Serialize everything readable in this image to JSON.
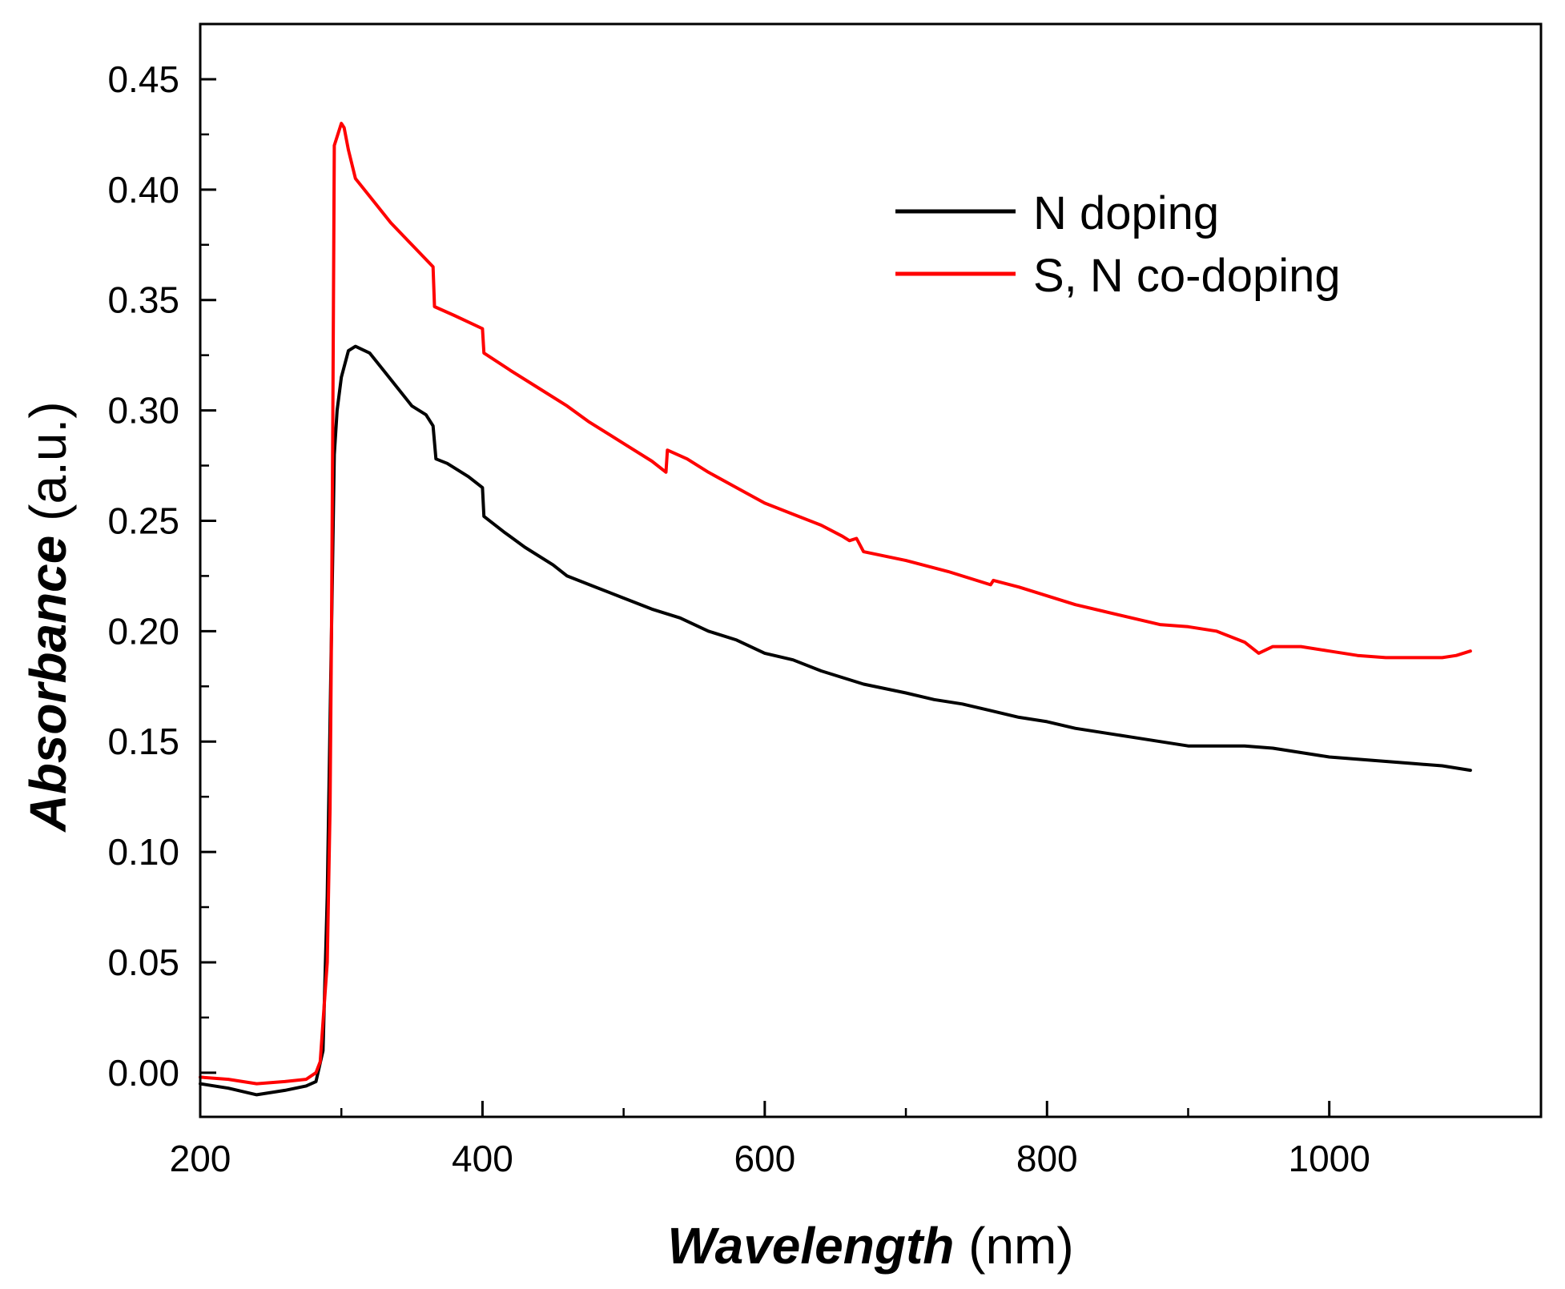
{
  "chart_data": {
    "type": "line",
    "title": "",
    "xlabel": {
      "main": "Wavelength",
      "unit": " (nm)"
    },
    "ylabel": {
      "main": "Absorbance",
      "unit": " (a.u.)"
    },
    "xlim": [
      200,
      1150
    ],
    "ylim": [
      -0.02,
      0.475
    ],
    "xticks": [
      200,
      400,
      600,
      800,
      1000
    ],
    "xtick_labels": [
      "200",
      "400",
      "600",
      "800",
      "1000"
    ],
    "yticks": [
      0.0,
      0.05,
      0.1,
      0.15,
      0.2,
      0.25,
      0.3,
      0.35,
      0.4,
      0.45
    ],
    "ytick_labels": [
      "0.00",
      "0.05",
      "0.10",
      "0.15",
      "0.20",
      "0.25",
      "0.30",
      "0.35",
      "0.40",
      "0.45"
    ],
    "grid": false,
    "legend_position": "top-right",
    "series": [
      {
        "name": "N doping",
        "color": "#000000",
        "points": [
          [
            200,
            -0.005
          ],
          [
            220,
            -0.007
          ],
          [
            240,
            -0.01
          ],
          [
            260,
            -0.008
          ],
          [
            275,
            -0.006
          ],
          [
            282,
            -0.004
          ],
          [
            287,
            0.01
          ],
          [
            290,
            0.08
          ],
          [
            293,
            0.2
          ],
          [
            295,
            0.28
          ],
          [
            297,
            0.3
          ],
          [
            300,
            0.315
          ],
          [
            305,
            0.327
          ],
          [
            310,
            0.329
          ],
          [
            320,
            0.326
          ],
          [
            330,
            0.318
          ],
          [
            340,
            0.31
          ],
          [
            350,
            0.302
          ],
          [
            360,
            0.298
          ],
          [
            365,
            0.293
          ],
          [
            367,
            0.278
          ],
          [
            375,
            0.276
          ],
          [
            390,
            0.27
          ],
          [
            400,
            0.265
          ],
          [
            401,
            0.252
          ],
          [
            415,
            0.245
          ],
          [
            430,
            0.238
          ],
          [
            450,
            0.23
          ],
          [
            460,
            0.225
          ],
          [
            480,
            0.22
          ],
          [
            500,
            0.215
          ],
          [
            520,
            0.21
          ],
          [
            540,
            0.206
          ],
          [
            560,
            0.2
          ],
          [
            580,
            0.196
          ],
          [
            600,
            0.19
          ],
          [
            620,
            0.187
          ],
          [
            640,
            0.182
          ],
          [
            660,
            0.178
          ],
          [
            670,
            0.176
          ],
          [
            700,
            0.172
          ],
          [
            720,
            0.169
          ],
          [
            740,
            0.167
          ],
          [
            760,
            0.164
          ],
          [
            780,
            0.161
          ],
          [
            800,
            0.159
          ],
          [
            820,
            0.156
          ],
          [
            840,
            0.154
          ],
          [
            860,
            0.152
          ],
          [
            880,
            0.15
          ],
          [
            900,
            0.148
          ],
          [
            920,
            0.148
          ],
          [
            940,
            0.148
          ],
          [
            960,
            0.147
          ],
          [
            980,
            0.145
          ],
          [
            1000,
            0.143
          ],
          [
            1020,
            0.142
          ],
          [
            1040,
            0.141
          ],
          [
            1060,
            0.14
          ],
          [
            1080,
            0.139
          ],
          [
            1100,
            0.137
          ]
        ]
      },
      {
        "name": "S, N co-doping",
        "color": "#ff0000",
        "points": [
          [
            200,
            -0.002
          ],
          [
            220,
            -0.003
          ],
          [
            240,
            -0.005
          ],
          [
            260,
            -0.004
          ],
          [
            275,
            -0.003
          ],
          [
            282,
            0.0
          ],
          [
            285,
            0.005
          ],
          [
            290,
            0.05
          ],
          [
            292,
            0.12
          ],
          [
            293,
            0.2
          ],
          [
            294,
            0.3
          ],
          [
            295,
            0.42
          ],
          [
            300,
            0.43
          ],
          [
            302,
            0.428
          ],
          [
            305,
            0.418
          ],
          [
            310,
            0.405
          ],
          [
            320,
            0.397
          ],
          [
            335,
            0.385
          ],
          [
            350,
            0.375
          ],
          [
            365,
            0.365
          ],
          [
            366,
            0.347
          ],
          [
            380,
            0.343
          ],
          [
            400,
            0.337
          ],
          [
            401,
            0.326
          ],
          [
            420,
            0.318
          ],
          [
            440,
            0.31
          ],
          [
            460,
            0.302
          ],
          [
            475,
            0.295
          ],
          [
            500,
            0.285
          ],
          [
            520,
            0.277
          ],
          [
            530,
            0.272
          ],
          [
            531,
            0.282
          ],
          [
            545,
            0.278
          ],
          [
            560,
            0.272
          ],
          [
            580,
            0.265
          ],
          [
            600,
            0.258
          ],
          [
            620,
            0.253
          ],
          [
            640,
            0.248
          ],
          [
            655,
            0.243
          ],
          [
            660,
            0.241
          ],
          [
            665,
            0.242
          ],
          [
            670,
            0.236
          ],
          [
            700,
            0.232
          ],
          [
            730,
            0.227
          ],
          [
            760,
            0.221
          ],
          [
            762,
            0.223
          ],
          [
            780,
            0.22
          ],
          [
            800,
            0.216
          ],
          [
            820,
            0.212
          ],
          [
            840,
            0.209
          ],
          [
            860,
            0.206
          ],
          [
            880,
            0.203
          ],
          [
            900,
            0.202
          ],
          [
            920,
            0.2
          ],
          [
            940,
            0.195
          ],
          [
            950,
            0.19
          ],
          [
            960,
            0.193
          ],
          [
            980,
            0.193
          ],
          [
            1000,
            0.191
          ],
          [
            1020,
            0.189
          ],
          [
            1040,
            0.188
          ],
          [
            1060,
            0.188
          ],
          [
            1080,
            0.188
          ],
          [
            1090,
            0.189
          ],
          [
            1100,
            0.191
          ]
        ]
      }
    ]
  }
}
